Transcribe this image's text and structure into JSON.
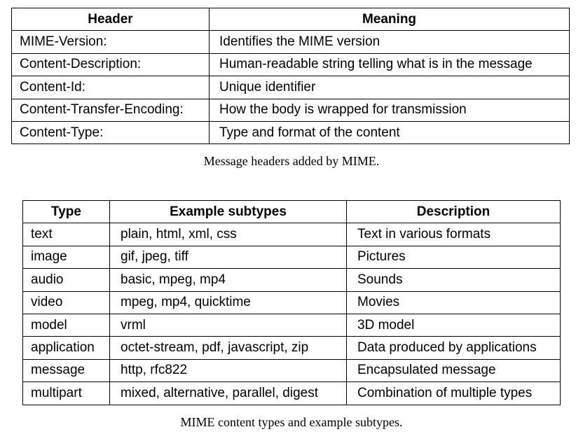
{
  "table1": {
    "headers": [
      "Header",
      "Meaning"
    ],
    "rows": [
      [
        "MIME-Version:",
        "Identifies the MIME version"
      ],
      [
        "Content-Description:",
        "Human-readable string telling what is in the message"
      ],
      [
        "Content-Id:",
        "Unique identifier"
      ],
      [
        "Content-Transfer-Encoding:",
        "How the body is wrapped for transmission"
      ],
      [
        "Content-Type:",
        "Type and format of the content"
      ]
    ],
    "caption": "Message headers added by MIME."
  },
  "table2": {
    "headers": [
      "Type",
      "Example subtypes",
      "Description"
    ],
    "rows": [
      [
        "text",
        "plain, html, xml, css",
        "Text in various formats"
      ],
      [
        "image",
        "gif, jpeg, tiff",
        "Pictures"
      ],
      [
        "audio",
        "basic, mpeg, mp4",
        "Sounds"
      ],
      [
        "video",
        "mpeg, mp4, quicktime",
        "Movies"
      ],
      [
        "model",
        "vrml",
        "3D model"
      ],
      [
        "application",
        "octet-stream, pdf, javascript, zip",
        "Data produced by applications"
      ],
      [
        "message",
        "http, rfc822",
        "Encapsulated message"
      ],
      [
        "multipart",
        "mixed, alternative, parallel, digest",
        "Combination of multiple types"
      ]
    ],
    "caption": "MIME content types and example subtypes."
  }
}
